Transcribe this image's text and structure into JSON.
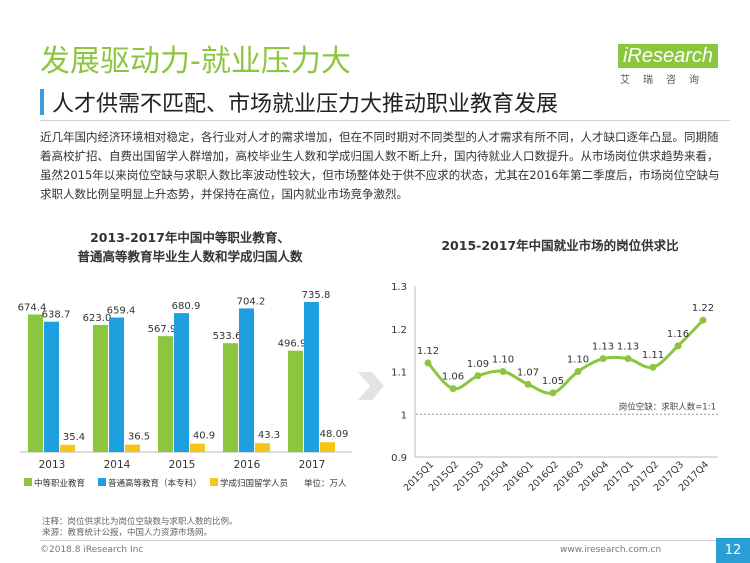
{
  "header": {
    "title": "发展驱动力-就业压力大",
    "subtitle": "人才供需不匹配、市场就业压力大推动职业教育发展",
    "paragraph": "近几年国内经济环境相对稳定，各行业对人才的需求增加，但在不同时期对不同类型的人才需求有所不同，人才缺口逐年凸显。同期随着高校扩招、自费出国留学人群增加，高校毕业生人数和学成归国人数不断上升，国内待就业人口数提升。从市场岗位供求趋势来看，虽然2015年以来岗位空缺与求职人数比率波动性较大，但市场整体处于供不应求的状态，尤其在2016年第二季度后，市场岗位空缺与求职人数比例呈明显上升态势，并保持在高位，国内就业市场竞争激烈。"
  },
  "logo": {
    "word": "iResearch",
    "sub": "艾瑞咨询"
  },
  "colors": {
    "green": "#8cc63f",
    "blue": "#1ea0e0",
    "yellow": "#f5c518",
    "line": "#8cc63f",
    "accent": "#3a9fd6"
  },
  "chart_data": [
    {
      "type": "bar",
      "title": "2013-2017年中国中等职业教育、普通高等教育毕业生人数和学成归国人数",
      "title_lines": [
        "2013-2017年中国中等职业教育、",
        "普通高等教育毕业生人数和学成归国人数"
      ],
      "categories": [
        "2013",
        "2014",
        "2015",
        "2016",
        "2017"
      ],
      "series": [
        {
          "name": "中等职业教育",
          "values": [
            674.4,
            623.0,
            567.9,
            533.6,
            496.9
          ],
          "labels": [
            "674.4",
            "623.0",
            "567.9",
            "533.6",
            "496.9"
          ]
        },
        {
          "name": "普通高等教育（本专科）",
          "values": [
            638.7,
            659.4,
            680.9,
            704.2,
            735.8
          ],
          "labels": [
            "638.7",
            "659.4",
            "680.9",
            "704.2",
            "735.8"
          ]
        },
        {
          "name": "学成归国留学人员",
          "values": [
            35.4,
            36.5,
            40.9,
            43.3,
            48.09
          ],
          "labels": [
            "35.4",
            "36.5",
            "40.9",
            "43.3",
            "48.09"
          ]
        }
      ],
      "unit": "单位：万人",
      "ylim": [
        0,
        760
      ],
      "legend": "bottom"
    },
    {
      "type": "line",
      "title": "2015-2017年中国就业市场的岗位供求比",
      "categories": [
        "2015Q1",
        "2015Q2",
        "2015Q3",
        "2015Q4",
        "2016Q1",
        "2016Q2",
        "2016Q3",
        "2016Q4",
        "2017Q1",
        "2017Q2",
        "2017Q3",
        "2017Q4"
      ],
      "values": [
        1.12,
        1.06,
        1.09,
        1.1,
        1.07,
        1.05,
        1.1,
        1.13,
        1.13,
        1.11,
        1.16,
        1.22
      ],
      "value_labels": [
        "1.12",
        "1.06",
        "1.09",
        "1.10",
        "1.07",
        "1.05",
        "1.10",
        "1.13",
        "1.13",
        "1.11",
        "1.16",
        "1.22"
      ],
      "yticks": [
        "1.3",
        "1.2",
        "1.1",
        "1",
        "0.9"
      ],
      "ylim": [
        0.9,
        1.3
      ],
      "reference_line": {
        "value": 1.0,
        "label": "岗位空缺：求职人数=1:1"
      },
      "grid": false
    }
  ],
  "notes": {
    "note": "注释：岗位供求比为岗位空缺数与求职人数的比例。",
    "source": "来源：教育统计公报，中国人力资源市场网。"
  },
  "footer": {
    "copyright": "©2018.8 iResearch Inc",
    "website": "www.iresearch.com.cn",
    "page": "12"
  }
}
